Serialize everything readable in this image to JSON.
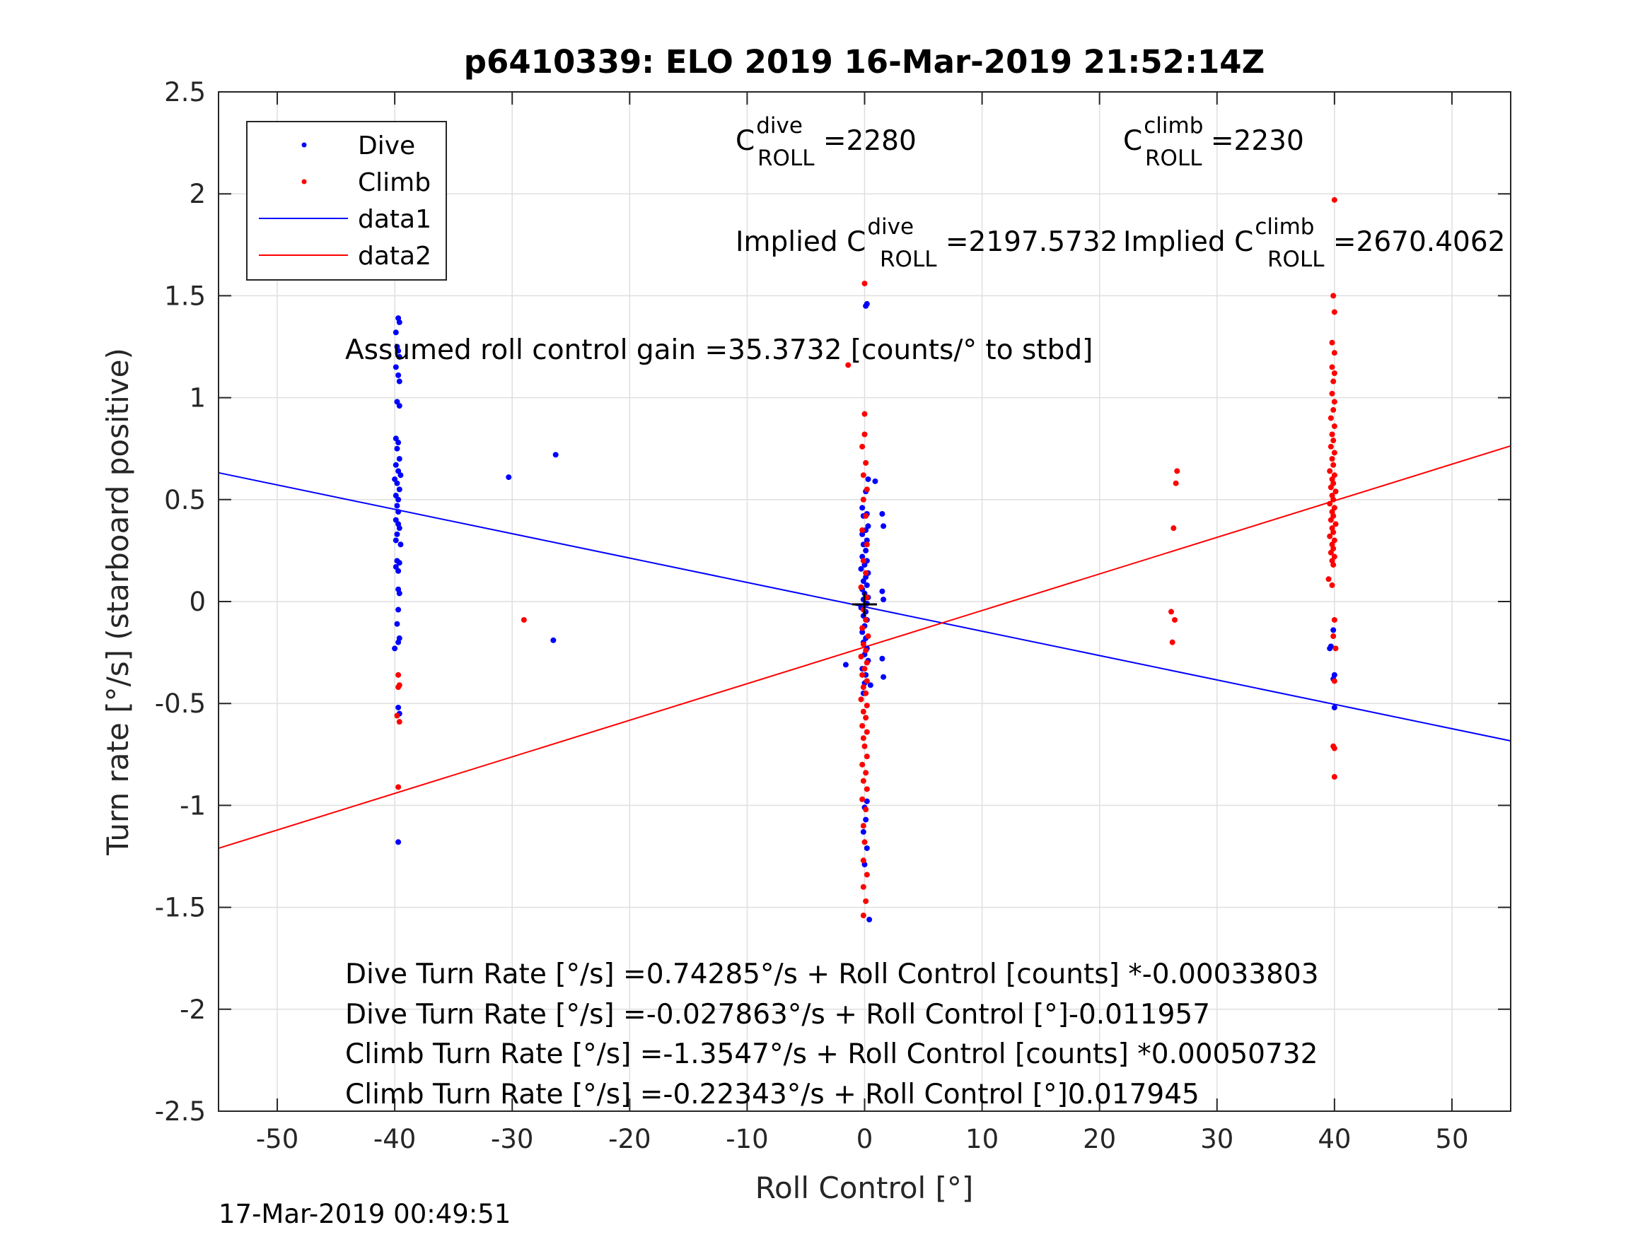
{
  "chart_data": {
    "type": "scatter",
    "title": "p6410339: ELO 2019 16-Mar-2019 21:52:14Z",
    "xlabel": "Roll Control [°]",
    "ylabel": "Turn rate [°/s] (starboard positive)",
    "xlim": [
      -55,
      55
    ],
    "ylim": [
      -2.5,
      2.5
    ],
    "grid": true,
    "x_ticks": [
      -50,
      -40,
      -30,
      -20,
      -10,
      0,
      10,
      20,
      30,
      40,
      50
    ],
    "x_tick_labels": [
      "-50",
      "-40",
      "-30",
      "-20",
      "-10",
      "0",
      "10",
      "20",
      "30",
      "40",
      "50"
    ],
    "y_ticks": [
      2.5,
      2,
      1.5,
      1,
      0.5,
      0,
      -0.5,
      -1,
      -1.5,
      -2,
      -2.5
    ],
    "y_tick_labels": [
      "2.5",
      "2",
      "1.5",
      "1",
      "0.5",
      "0",
      "-0.5",
      "-1",
      "-1.5",
      "-2",
      "-2.5"
    ],
    "legend_position": "top-left",
    "legend": [
      {
        "label": "Dive",
        "kind": "marker",
        "color": "#0000ff"
      },
      {
        "label": "Climb",
        "kind": "marker",
        "color": "#ff0000"
      },
      {
        "label": "data1",
        "kind": "line",
        "color": "#0000ff"
      },
      {
        "label": "data2",
        "kind": "line",
        "color": "#ff0000"
      }
    ],
    "series": [
      {
        "name": "Dive",
        "color": "#0000ff",
        "points": [
          [
            -39.7,
            1.39
          ],
          [
            -39.6,
            1.37
          ],
          [
            -39.9,
            1.32
          ],
          [
            -39.8,
            1.25
          ],
          [
            -39.7,
            1.23
          ],
          [
            -39.6,
            1.2
          ],
          [
            -39.9,
            1.15
          ],
          [
            -39.7,
            1.11
          ],
          [
            -39.6,
            1.08
          ],
          [
            -39.8,
            0.98
          ],
          [
            -39.6,
            0.96
          ],
          [
            -39.9,
            0.8
          ],
          [
            -39.7,
            0.78
          ],
          [
            -39.8,
            0.75
          ],
          [
            -39.6,
            0.7
          ],
          [
            -39.9,
            0.67
          ],
          [
            -39.7,
            0.64
          ],
          [
            -39.5,
            0.62
          ],
          [
            -40.0,
            0.6
          ],
          [
            -39.8,
            0.58
          ],
          [
            -39.6,
            0.55
          ],
          [
            -39.9,
            0.52
          ],
          [
            -39.7,
            0.5
          ],
          [
            -39.8,
            0.47
          ],
          [
            -39.7,
            0.44
          ],
          [
            -39.9,
            0.4
          ],
          [
            -39.7,
            0.38
          ],
          [
            -39.6,
            0.36
          ],
          [
            -39.8,
            0.33
          ],
          [
            -39.9,
            0.3
          ],
          [
            -39.5,
            0.28
          ],
          [
            -39.8,
            0.2
          ],
          [
            -39.6,
            0.19
          ],
          [
            -39.9,
            0.17
          ],
          [
            -39.7,
            0.15
          ],
          [
            -39.7,
            0.06
          ],
          [
            -39.6,
            0.04
          ],
          [
            -39.7,
            -0.04
          ],
          [
            -39.8,
            -0.11
          ],
          [
            -39.6,
            -0.18
          ],
          [
            -39.7,
            -0.2
          ],
          [
            -40.0,
            -0.23
          ],
          [
            -39.7,
            -0.52
          ],
          [
            -39.6,
            -0.55
          ],
          [
            -39.7,
            -1.18
          ],
          [
            -30.3,
            0.61
          ],
          [
            -26.3,
            0.72
          ],
          [
            -26.5,
            -0.19
          ],
          [
            0.2,
            1.46
          ],
          [
            0.1,
            1.45
          ],
          [
            0.3,
            0.6
          ],
          [
            0.9,
            0.59
          ],
          [
            0.1,
            0.54
          ],
          [
            -0.2,
            0.46
          ],
          [
            0.2,
            0.43
          ],
          [
            -0.1,
            0.42
          ],
          [
            0.3,
            0.37
          ],
          [
            0.1,
            0.35
          ],
          [
            -0.2,
            0.33
          ],
          [
            0.2,
            0.3
          ],
          [
            -0.1,
            0.28
          ],
          [
            0.1,
            0.25
          ],
          [
            -0.2,
            0.22
          ],
          [
            0.2,
            0.2
          ],
          [
            0.0,
            0.18
          ],
          [
            -0.3,
            0.16
          ],
          [
            0.3,
            0.14
          ],
          [
            0.1,
            0.12
          ],
          [
            -0.1,
            0.1
          ],
          [
            0.2,
            0.08
          ],
          [
            -0.2,
            0.06
          ],
          [
            0.0,
            0.04
          ],
          [
            0.3,
            0.02
          ],
          [
            -0.1,
            0.01
          ],
          [
            0.2,
            -0.01
          ],
          [
            -0.3,
            -0.03
          ],
          [
            0.1,
            -0.05
          ],
          [
            -0.1,
            -0.07
          ],
          [
            0.2,
            -0.09
          ],
          [
            0.0,
            -0.12
          ],
          [
            -0.2,
            -0.15
          ],
          [
            0.1,
            -0.18
          ],
          [
            -0.1,
            -0.2
          ],
          [
            0.2,
            -0.23
          ],
          [
            0.0,
            -0.26
          ],
          [
            0.3,
            -0.29
          ],
          [
            -0.2,
            -0.33
          ],
          [
            0.1,
            -0.36
          ],
          [
            0.0,
            -0.4
          ],
          [
            -0.1,
            -0.45
          ],
          [
            1.5,
            0.43
          ],
          [
            1.6,
            0.37
          ],
          [
            1.5,
            0.05
          ],
          [
            1.6,
            0.01
          ],
          [
            1.5,
            -0.28
          ],
          [
            1.6,
            -0.37
          ],
          [
            -1.6,
            -0.31
          ],
          [
            0.5,
            -0.41
          ],
          [
            0.2,
            -0.98
          ],
          [
            0.0,
            -1.01
          ],
          [
            0.1,
            -1.07
          ],
          [
            -0.1,
            -1.13
          ],
          [
            0.2,
            -1.21
          ],
          [
            0.0,
            -1.29
          ],
          [
            0.4,
            -1.56
          ],
          [
            39.9,
            -0.14
          ],
          [
            39.7,
            -0.22
          ],
          [
            39.6,
            -0.23
          ],
          [
            40.0,
            -0.36
          ],
          [
            39.9,
            -0.38
          ],
          [
            40.0,
            -0.52
          ]
        ]
      },
      {
        "name": "Climb",
        "color": "#ff0000",
        "points": [
          [
            -39.7,
            -0.36
          ],
          [
            -39.6,
            -0.41
          ],
          [
            -39.7,
            -0.42
          ],
          [
            -39.8,
            -0.56
          ],
          [
            -39.6,
            -0.59
          ],
          [
            -39.7,
            -0.91
          ],
          [
            -29.0,
            -0.09
          ],
          [
            0.0,
            1.56
          ],
          [
            -1.4,
            1.16
          ],
          [
            0.0,
            0.92
          ],
          [
            0.0,
            0.82
          ],
          [
            -0.2,
            0.76
          ],
          [
            0.1,
            0.68
          ],
          [
            -0.1,
            0.62
          ],
          [
            0.2,
            0.55
          ],
          [
            -0.1,
            0.5
          ],
          [
            0.1,
            0.42
          ],
          [
            -0.2,
            0.35
          ],
          [
            0.2,
            0.28
          ],
          [
            -0.1,
            0.2
          ],
          [
            0.1,
            0.14
          ],
          [
            -0.3,
            0.07
          ],
          [
            0.2,
            0.02
          ],
          [
            -0.1,
            -0.04
          ],
          [
            0.1,
            -0.09
          ],
          [
            -0.2,
            -0.13
          ],
          [
            0.3,
            -0.17
          ],
          [
            -0.1,
            -0.21
          ],
          [
            0.1,
            -0.24
          ],
          [
            -0.3,
            -0.27
          ],
          [
            0.2,
            -0.3
          ],
          [
            0.0,
            -0.33
          ],
          [
            -0.2,
            -0.36
          ],
          [
            0.2,
            -0.39
          ],
          [
            -0.1,
            -0.42
          ],
          [
            0.1,
            -0.45
          ],
          [
            -0.3,
            -0.48
          ],
          [
            0.2,
            -0.51
          ],
          [
            -0.1,
            -0.54
          ],
          [
            0.1,
            -0.57
          ],
          [
            -0.2,
            -0.61
          ],
          [
            0.2,
            -0.64
          ],
          [
            -0.1,
            -0.67
          ],
          [
            0.0,
            -0.71
          ],
          [
            0.2,
            -0.76
          ],
          [
            -0.2,
            -0.8
          ],
          [
            0.1,
            -0.84
          ],
          [
            -0.1,
            -0.88
          ],
          [
            0.2,
            -0.92
          ],
          [
            -0.2,
            -0.97
          ],
          [
            0.1,
            -1.02
          ],
          [
            -0.1,
            -1.1
          ],
          [
            0.0,
            -1.18
          ],
          [
            -0.1,
            -1.27
          ],
          [
            0.2,
            -1.34
          ],
          [
            -0.1,
            -1.4
          ],
          [
            0.1,
            -1.47
          ],
          [
            -0.1,
            -1.54
          ],
          [
            26.6,
            0.64
          ],
          [
            26.5,
            0.58
          ],
          [
            26.3,
            0.36
          ],
          [
            26.1,
            -0.05
          ],
          [
            26.4,
            -0.09
          ],
          [
            26.2,
            -0.2
          ],
          [
            40.0,
            1.97
          ],
          [
            39.9,
            1.5
          ],
          [
            40.0,
            1.42
          ],
          [
            39.8,
            1.27
          ],
          [
            40.0,
            1.22
          ],
          [
            39.8,
            1.15
          ],
          [
            40.0,
            1.12
          ],
          [
            39.9,
            1.08
          ],
          [
            39.8,
            1.02
          ],
          [
            40.0,
            0.98
          ],
          [
            39.9,
            0.94
          ],
          [
            39.7,
            0.9
          ],
          [
            40.0,
            0.86
          ],
          [
            39.8,
            0.82
          ],
          [
            39.9,
            0.79
          ],
          [
            39.7,
            0.76
          ],
          [
            40.0,
            0.73
          ],
          [
            39.8,
            0.7
          ],
          [
            39.9,
            0.67
          ],
          [
            39.6,
            0.64
          ],
          [
            40.0,
            0.62
          ],
          [
            39.8,
            0.6
          ],
          [
            39.9,
            0.58
          ],
          [
            39.7,
            0.56
          ],
          [
            40.1,
            0.54
          ],
          [
            39.8,
            0.52
          ],
          [
            39.9,
            0.5
          ],
          [
            39.6,
            0.48
          ],
          [
            40.0,
            0.46
          ],
          [
            39.8,
            0.44
          ],
          [
            39.9,
            0.42
          ],
          [
            39.7,
            0.4
          ],
          [
            40.1,
            0.38
          ],
          [
            39.8,
            0.36
          ],
          [
            39.9,
            0.34
          ],
          [
            39.6,
            0.32
          ],
          [
            40.0,
            0.3
          ],
          [
            39.8,
            0.28
          ],
          [
            39.9,
            0.26
          ],
          [
            39.7,
            0.24
          ],
          [
            40.0,
            0.22
          ],
          [
            39.8,
            0.2
          ],
          [
            39.9,
            0.18
          ],
          [
            39.5,
            0.11
          ],
          [
            39.8,
            0.08
          ],
          [
            40.0,
            -0.09
          ],
          [
            39.9,
            -0.17
          ],
          [
            40.1,
            -0.23
          ],
          [
            40.0,
            -0.39
          ],
          [
            39.9,
            -0.71
          ],
          [
            40.0,
            -0.72
          ],
          [
            40.0,
            -0.86
          ]
        ]
      },
      {
        "name": "data1",
        "kind": "line",
        "color": "#0000ff",
        "x": [
          -55,
          55
        ],
        "y": [
          0.6317,
          -0.6836
        ]
      },
      {
        "name": "data2",
        "kind": "line",
        "color": "#ff0000",
        "x": [
          -55,
          55
        ],
        "y": [
          -1.2104,
          0.7635
        ]
      }
    ],
    "annotations": {
      "c_dive": {
        "base": "C",
        "sup": "dive",
        "sub": "ROLL",
        "value": " =2280"
      },
      "c_climb": {
        "base": "C",
        "sup": "climb",
        "sub": "ROLL",
        "value": " =2230"
      },
      "implied_dive": {
        "base": "Implied C",
        "sup": "dive",
        "sub": "ROLL",
        "value": " =2197.5732"
      },
      "implied_climb": {
        "base": "Implied C",
        "sup": "climb",
        "sub": "ROLL",
        "value": " =2670.4062"
      },
      "gain": "Assumed roll control gain =35.3732 [counts/° to stbd]",
      "equations": [
        "Dive Turn Rate [°/s] =0.74285°/s + Roll Control [counts] *-0.00033803",
        "Dive Turn Rate [°/s] =-0.027863°/s + Roll Control [°]-0.011957",
        "Climb Turn Rate [°/s] =-1.3547°/s + Roll Control [counts] *0.00050732",
        "Climb Turn Rate [°/s] =-0.22343°/s + Roll Control [°]0.017945"
      ]
    },
    "timestamp": "17-Mar-2019 00:49:51"
  }
}
